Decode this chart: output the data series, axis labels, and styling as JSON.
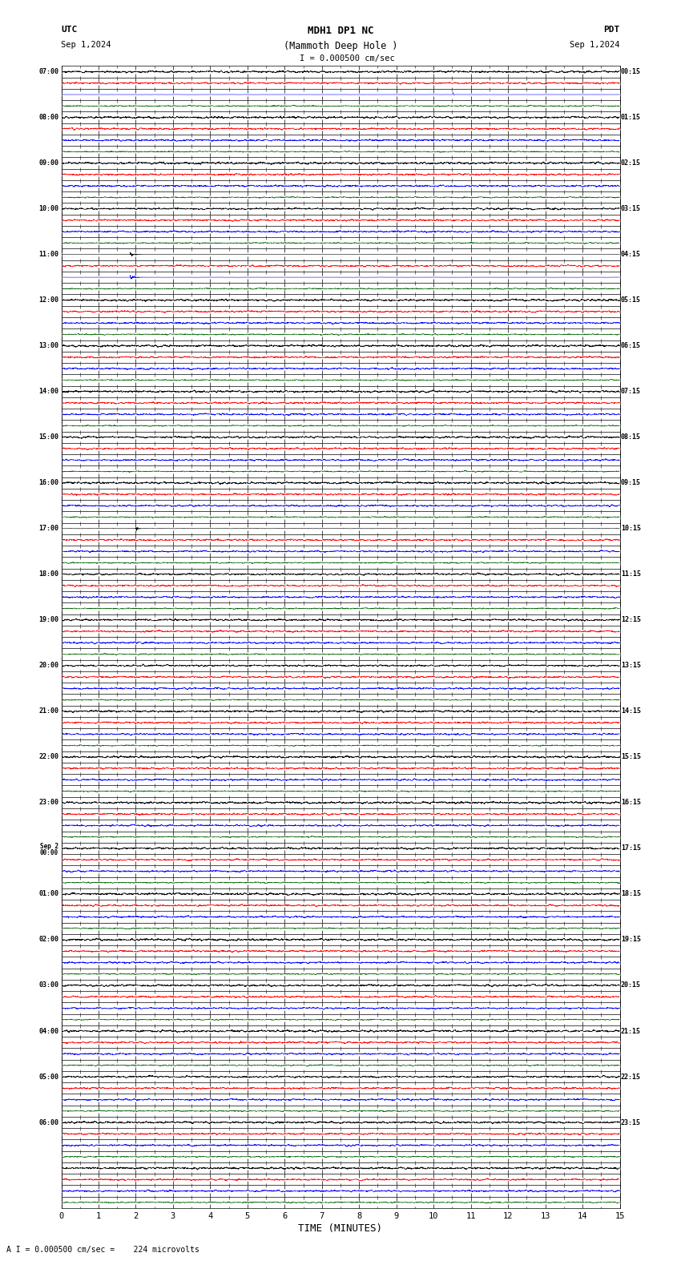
{
  "title_line1": "MDH1 DP1 NC",
  "title_line2": "(Mammoth Deep Hole )",
  "scale_label": "I = 0.000500 cm/sec",
  "utc_label": "UTC",
  "utc_date": "Sep 1,2024",
  "pdt_label": "PDT",
  "pdt_date": "Sep 1,2024",
  "bottom_label": "A I = 0.000500 cm/sec =    224 microvolts",
  "xlabel": "TIME (MINUTES)",
  "n_hours": 25,
  "minutes_per_row": 15,
  "bg_color": "#ffffff",
  "colors": [
    "#000000",
    "#ff0000",
    "#0000ff",
    "#006400"
  ],
  "utc_times": [
    "07:00",
    "08:00",
    "09:00",
    "10:00",
    "11:00",
    "12:00",
    "13:00",
    "14:00",
    "15:00",
    "16:00",
    "17:00",
    "18:00",
    "19:00",
    "20:00",
    "21:00",
    "22:00",
    "23:00",
    "Sep 2\n00:00",
    "01:00",
    "02:00",
    "03:00",
    "04:00",
    "05:00",
    "06:00",
    "",
    "",
    "",
    "",
    "",
    "",
    "",
    "",
    "",
    "",
    "",
    "",
    "",
    "",
    "",
    "",
    "",
    "",
    "",
    "",
    "",
    "",
    "",
    "",
    "",
    "",
    "",
    "",
    "",
    "",
    "",
    "",
    "",
    ""
  ],
  "pdt_times": [
    "00:15",
    "01:15",
    "02:15",
    "03:15",
    "04:15",
    "05:15",
    "06:15",
    "07:15",
    "08:15",
    "09:15",
    "10:15",
    "11:15",
    "12:15",
    "13:15",
    "14:15",
    "15:15",
    "16:15",
    "17:15",
    "18:15",
    "19:15",
    "20:15",
    "21:15",
    "22:15",
    "23:15",
    "",
    "",
    "",
    "",
    "",
    "",
    "",
    "",
    "",
    "",
    "",
    "",
    "",
    "",
    "",
    "",
    "",
    "",
    "",
    "",
    "",
    "",
    "",
    "",
    "",
    "",
    "",
    "",
    "",
    "",
    "",
    "",
    "",
    ""
  ],
  "eq1_hour": 4,
  "eq1_minute": 1.85,
  "eq1_amplitude": 1.0,
  "eq2_hour": 10,
  "eq2_minute": 2.0,
  "eq2_amplitude": 0.3,
  "blue_spike_hour": 0,
  "blue_spike_minute": 10.5
}
